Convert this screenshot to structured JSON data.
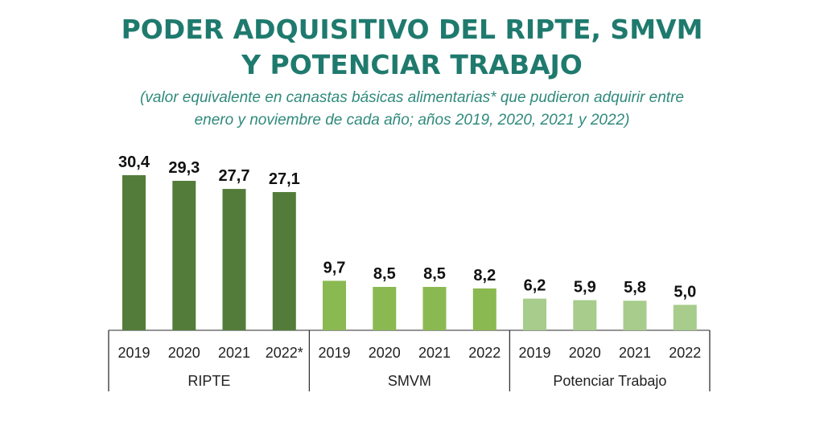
{
  "chart_data": {
    "type": "bar",
    "title_lines": [
      "PODER ADQUISITIVO DEL RIPTE, SMVM",
      "Y POTENCIAR TRABAJO"
    ],
    "subtitle_lines": [
      "(valor equivalente en canastas básicas alimentarias* que pudieron adquirir entre",
      "enero y noviembre de cada año; años 2019, 2020, 2021 y 2022)"
    ],
    "xlabel": "",
    "ylabel": "",
    "ylim": [
      0,
      31
    ],
    "grid": false,
    "groups": [
      {
        "name": "RIPTE",
        "color": "#537c3a",
        "categories": [
          "2019",
          "2020",
          "2021",
          "2022*"
        ],
        "values": [
          30.4,
          29.3,
          27.7,
          27.1
        ],
        "labels": [
          "30,4",
          "29,3",
          "27,7",
          "27,1"
        ]
      },
      {
        "name": "SMVM",
        "color": "#8bb951",
        "categories": [
          "2019",
          "2020",
          "2021",
          "2022"
        ],
        "values": [
          9.7,
          8.5,
          8.5,
          8.2
        ],
        "labels": [
          "9,7",
          "8,5",
          "8,5",
          "8,2"
        ]
      },
      {
        "name": "Potenciar Trabajo",
        "color": "#a7cc8b",
        "categories": [
          "2019",
          "2020",
          "2021",
          "2022"
        ],
        "values": [
          6.2,
          5.9,
          5.8,
          5.0
        ],
        "labels": [
          "6,2",
          "5,9",
          "5,8",
          "5,0"
        ]
      }
    ]
  }
}
